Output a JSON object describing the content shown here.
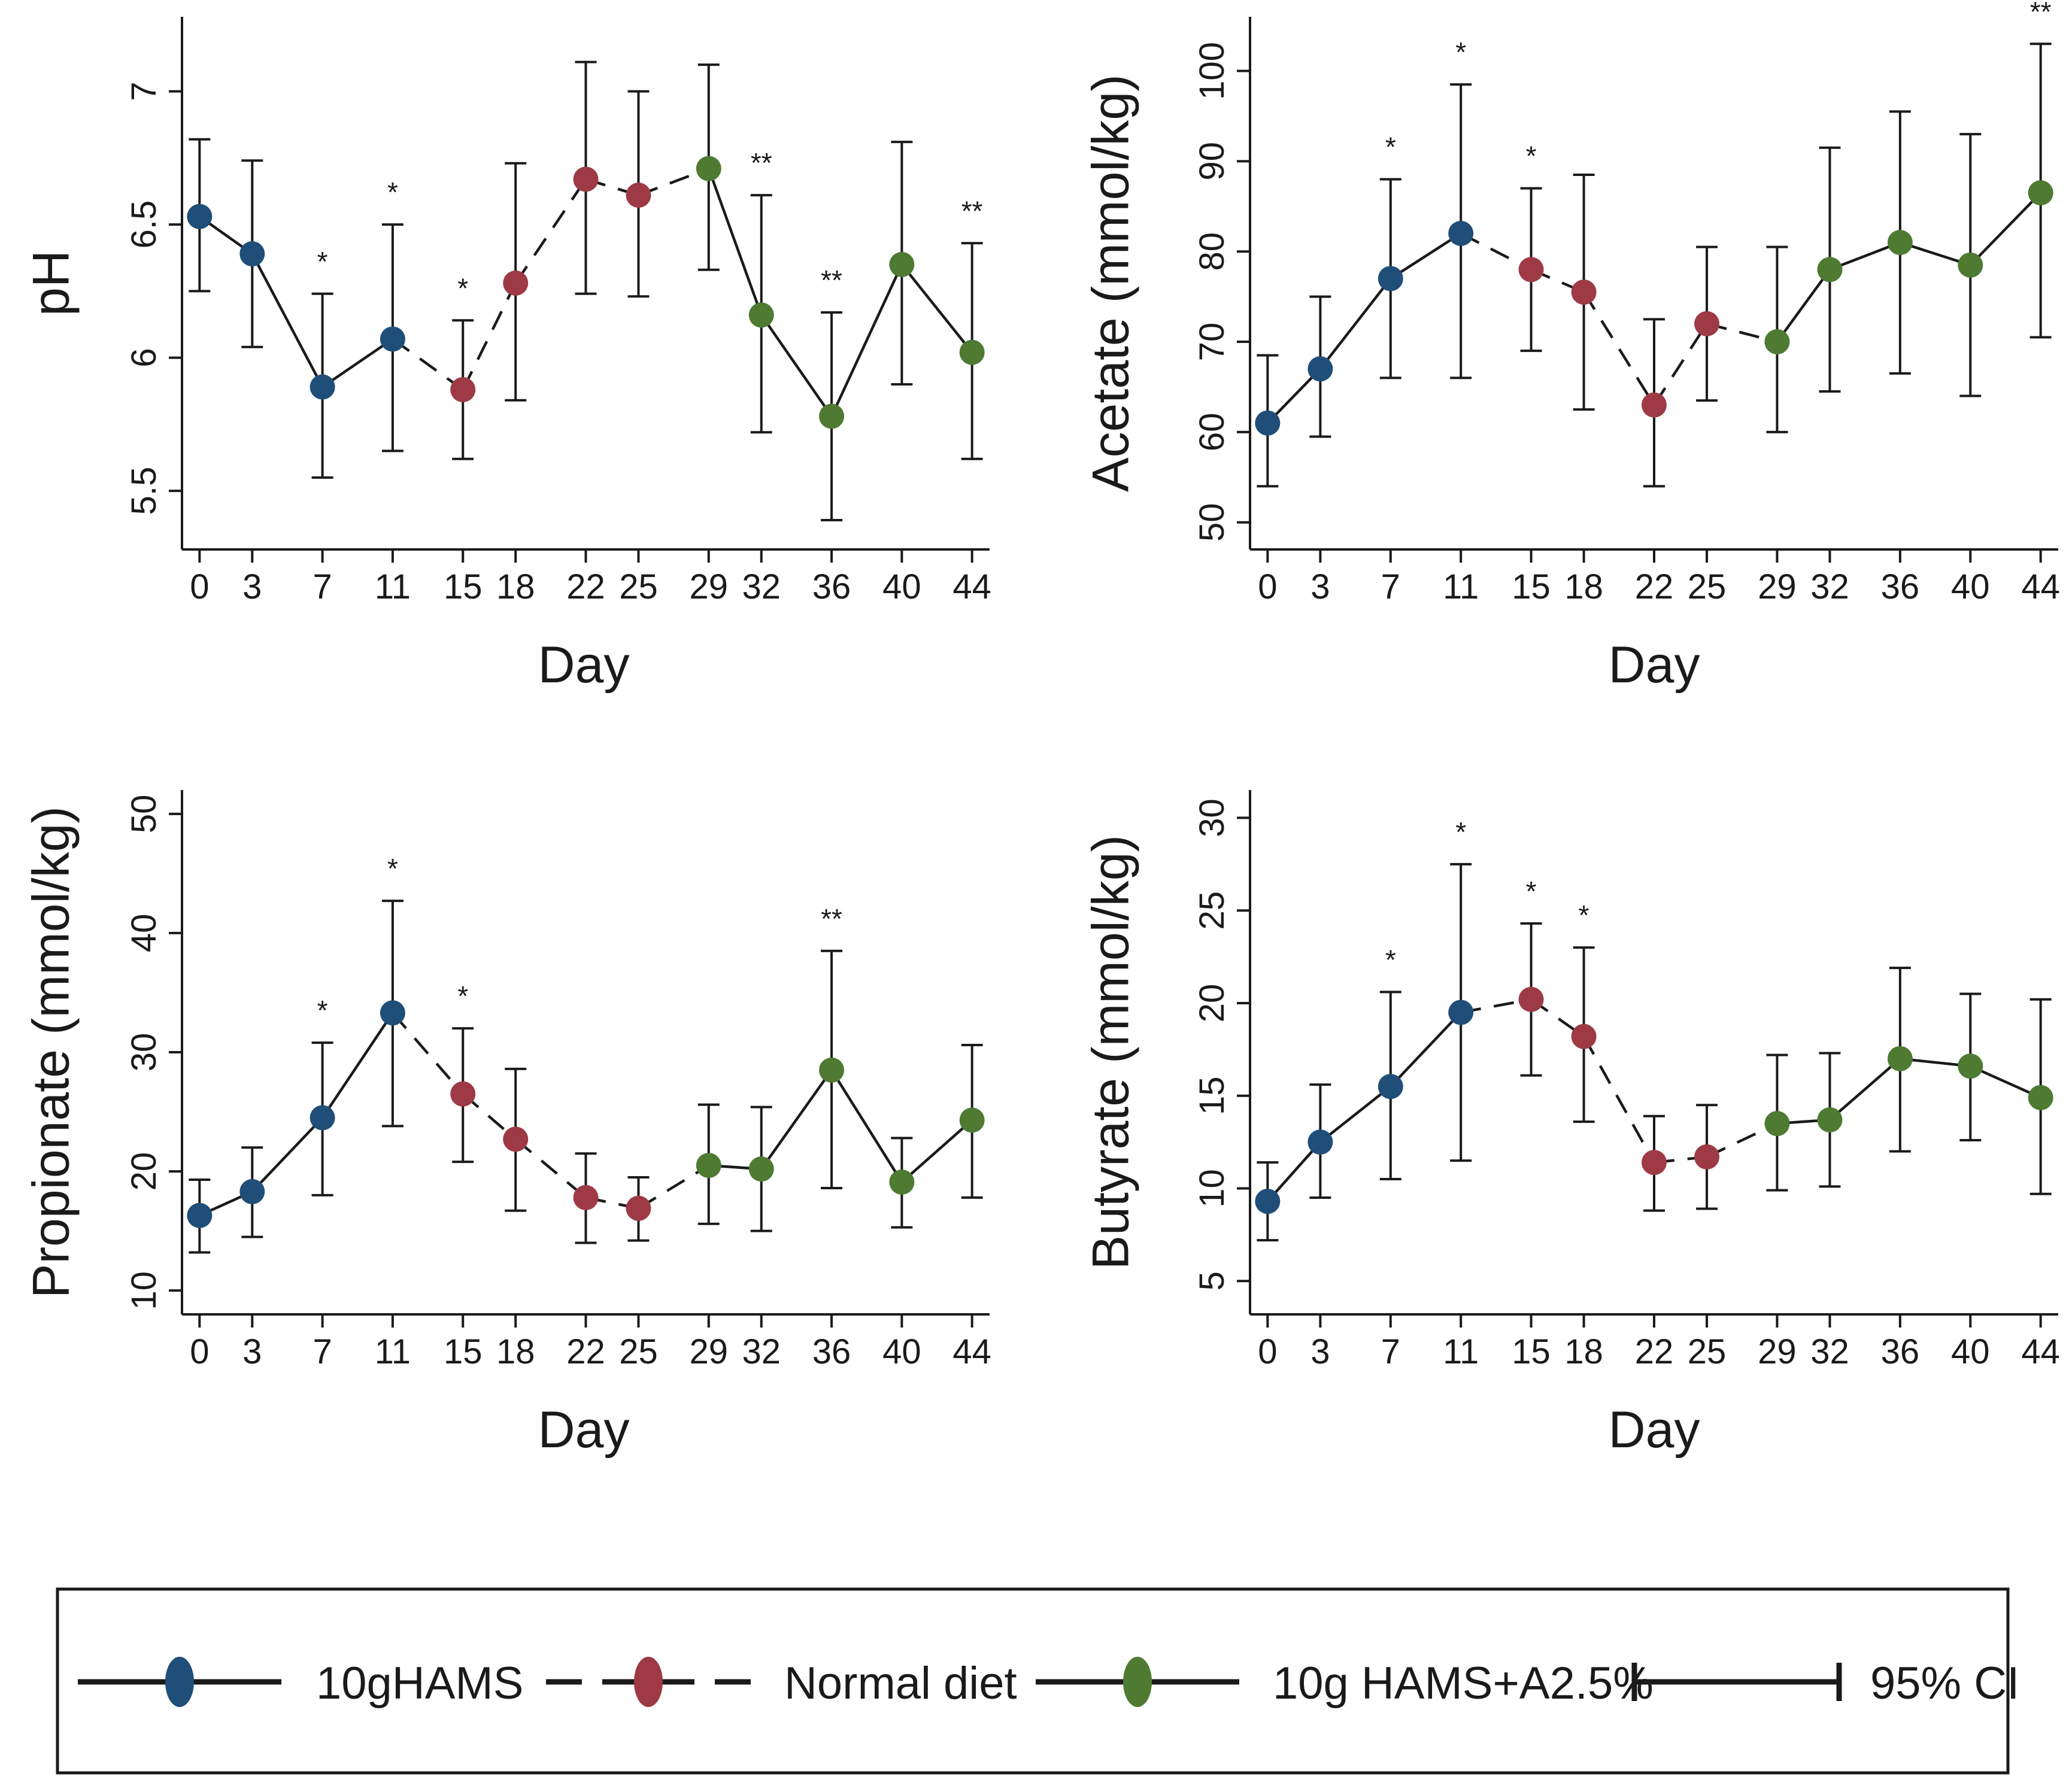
{
  "colors": {
    "hams": "#1f4e79",
    "normal": "#9e3a45",
    "hams_a": "#4e7a32",
    "axis": "#1a1a1a"
  },
  "legend": {
    "items": [
      {
        "label": "10gHAMS",
        "style": "solid",
        "color": "#1f4e79"
      },
      {
        "label": "Normal diet",
        "style": "dashed",
        "color": "#9e3a45"
      },
      {
        "label": "10g HAMS+A2.5%",
        "style": "solid",
        "color": "#4e7a32"
      },
      {
        "label": "95% CI",
        "style": "ci",
        "color": "#1a1a1a"
      }
    ]
  },
  "chart_data": [
    {
      "id": "ph",
      "type": "line",
      "ylabel": "pH",
      "xlabel": "Day",
      "xlim": [
        -1,
        45
      ],
      "ylim": [
        5.28,
        7.28
      ],
      "yticks": [
        5.5,
        6,
        6.5,
        7
      ],
      "ytick_labels": [
        "5.5",
        "6",
        "6.5",
        "7"
      ],
      "days": [
        0,
        3,
        7,
        11,
        15,
        18,
        22,
        25,
        29,
        32,
        36,
        40,
        44
      ],
      "xtick_labels": [
        "0",
        "3",
        "7",
        "11",
        "15",
        "18",
        "22",
        "25",
        "29",
        "32",
        "36",
        "40",
        "44"
      ],
      "values": [
        6.53,
        6.39,
        5.89,
        6.07,
        5.88,
        6.28,
        6.67,
        6.61,
        6.71,
        6.16,
        5.78,
        6.35,
        6.02
      ],
      "lower": [
        6.25,
        6.04,
        5.55,
        5.65,
        5.62,
        5.84,
        6.24,
        6.23,
        6.33,
        5.72,
        5.39,
        5.9,
        5.62
      ],
      "upper": [
        6.82,
        6.74,
        6.24,
        6.5,
        6.14,
        6.73,
        7.11,
        7.0,
        7.1,
        6.61,
        6.17,
        6.81,
        6.43
      ],
      "group": [
        "hams",
        "hams",
        "hams",
        "hams",
        "normal",
        "normal",
        "normal",
        "normal",
        "hams_a",
        "hams_a",
        "hams_a",
        "hams_a",
        "hams_a"
      ],
      "sig": [
        "",
        "",
        "*",
        "*",
        "*",
        "",
        "",
        "",
        "",
        "**",
        "**",
        "",
        "**"
      ]
    },
    {
      "id": "acetate",
      "type": "line",
      "ylabel": "Acetate (mmol/kg)",
      "xlabel": "Day",
      "xlim": [
        -1,
        45
      ],
      "ylim": [
        47,
        106
      ],
      "yticks": [
        50,
        60,
        70,
        80,
        90,
        100
      ],
      "ytick_labels": [
        "50",
        "60",
        "70",
        "80",
        "90",
        "100"
      ],
      "days": [
        0,
        3,
        7,
        11,
        15,
        18,
        22,
        25,
        29,
        32,
        36,
        40,
        44
      ],
      "xtick_labels": [
        "0",
        "3",
        "7",
        "11",
        "15",
        "18",
        "22",
        "25",
        "29",
        "32",
        "36",
        "40",
        "44"
      ],
      "values": [
        61,
        67,
        77,
        82,
        78,
        75.5,
        63,
        72,
        70,
        78,
        81,
        78.5,
        86.5
      ],
      "lower": [
        54,
        59.5,
        66,
        66,
        69,
        62.5,
        54,
        63.5,
        60,
        64.5,
        66.5,
        64,
        70.5
      ],
      "upper": [
        68.5,
        75,
        88,
        98.5,
        87,
        88.5,
        72.5,
        80.5,
        80.5,
        91.5,
        95.5,
        93,
        103
      ],
      "group": [
        "hams",
        "hams",
        "hams",
        "hams",
        "normal",
        "normal",
        "normal",
        "normal",
        "hams_a",
        "hams_a",
        "hams_a",
        "hams_a",
        "hams_a"
      ],
      "sig": [
        "",
        "",
        "*",
        "*",
        "*",
        "",
        "",
        "",
        "",
        "",
        "",
        "",
        "**"
      ]
    },
    {
      "id": "propionate",
      "type": "line",
      "ylabel": "Propionate (mmol/kg)",
      "xlabel": "Day",
      "xlim": [
        -1,
        45
      ],
      "ylim": [
        8,
        52
      ],
      "yticks": [
        10,
        20,
        30,
        40,
        50
      ],
      "ytick_labels": [
        "10",
        "20",
        "30",
        "40",
        "50"
      ],
      "days": [
        0,
        3,
        7,
        11,
        15,
        18,
        22,
        25,
        29,
        32,
        36,
        40,
        44
      ],
      "xtick_labels": [
        "0",
        "3",
        "7",
        "11",
        "15",
        "18",
        "22",
        "25",
        "29",
        "32",
        "36",
        "40",
        "44"
      ],
      "values": [
        16.3,
        18.3,
        24.5,
        33.3,
        26.5,
        22.7,
        17.8,
        16.9,
        20.5,
        20.2,
        28.5,
        19.1,
        24.3
      ],
      "lower": [
        13.2,
        14.5,
        18.0,
        23.8,
        20.8,
        16.7,
        14.0,
        14.2,
        15.6,
        15.0,
        18.6,
        15.3,
        17.8
      ],
      "upper": [
        19.3,
        22.0,
        30.8,
        42.7,
        32.0,
        28.6,
        21.5,
        19.5,
        25.6,
        25.4,
        38.5,
        22.8,
        30.6
      ],
      "group": [
        "hams",
        "hams",
        "hams",
        "hams",
        "normal",
        "normal",
        "normal",
        "normal",
        "hams_a",
        "hams_a",
        "hams_a",
        "hams_a",
        "hams_a"
      ],
      "sig": [
        "",
        "",
        "*",
        "*",
        "*",
        "",
        "",
        "",
        "",
        "",
        "**",
        "",
        ""
      ]
    },
    {
      "id": "butyrate",
      "type": "line",
      "ylabel": "Butyrate (mmol/kg)",
      "xlabel": "Day",
      "xlim": [
        -1,
        45
      ],
      "ylim": [
        3.2,
        31.5
      ],
      "yticks": [
        5,
        10,
        15,
        20,
        25,
        30
      ],
      "ytick_labels": [
        "5",
        "10",
        "15",
        "20",
        "25",
        "30"
      ],
      "days": [
        0,
        3,
        7,
        11,
        15,
        18,
        22,
        25,
        29,
        32,
        36,
        40,
        44
      ],
      "xtick_labels": [
        "0",
        "3",
        "7",
        "11",
        "15",
        "18",
        "22",
        "25",
        "29",
        "32",
        "36",
        "40",
        "44"
      ],
      "values": [
        9.3,
        12.5,
        15.5,
        19.5,
        20.2,
        18.2,
        11.4,
        11.7,
        13.5,
        13.7,
        17.0,
        16.6,
        14.9
      ],
      "lower": [
        7.2,
        9.5,
        10.5,
        11.5,
        16.1,
        13.6,
        8.8,
        8.9,
        9.9,
        10.1,
        12.0,
        12.6,
        9.7
      ],
      "upper": [
        11.4,
        15.6,
        20.6,
        27.5,
        24.3,
        23.0,
        13.9,
        14.5,
        17.2,
        17.3,
        21.9,
        20.5,
        20.2
      ],
      "group": [
        "hams",
        "hams",
        "hams",
        "hams",
        "normal",
        "normal",
        "normal",
        "normal",
        "hams_a",
        "hams_a",
        "hams_a",
        "hams_a",
        "hams_a"
      ],
      "sig": [
        "",
        "",
        "*",
        "*",
        "*",
        "*",
        "",
        "",
        "",
        "",
        "",
        "",
        ""
      ]
    }
  ]
}
